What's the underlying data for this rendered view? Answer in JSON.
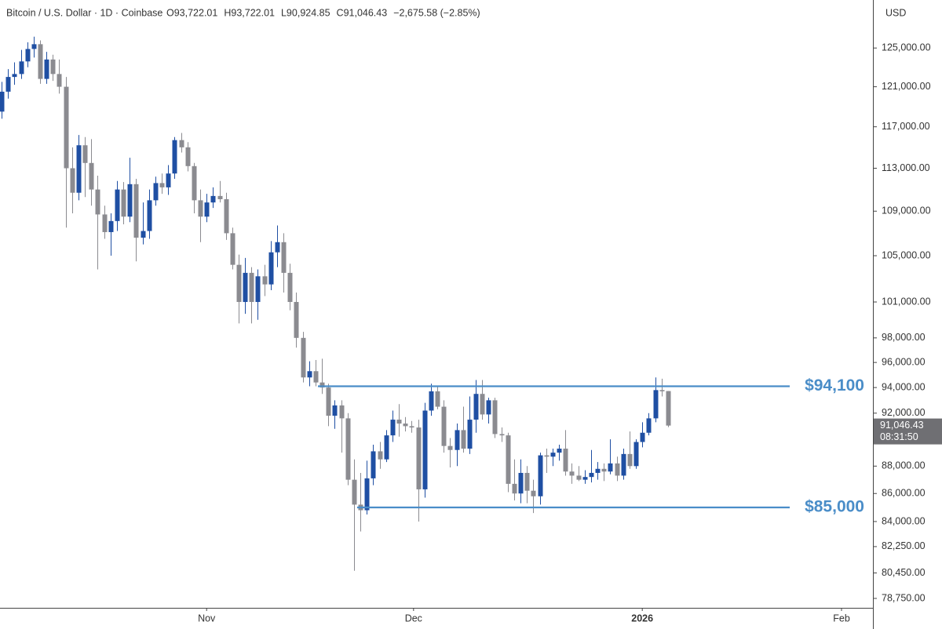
{
  "header": {
    "symbol": "Bitcoin / U.S. Dollar · 1D · Coinbase",
    "ohlc": [
      "O93,722.01",
      "H93,722.01",
      "L90,924.85",
      "C91,046.43"
    ],
    "change": "−2,675.58 (−2.85%)",
    "currency": "USD"
  },
  "chart_data": {
    "type": "candlestick",
    "categories": [
      null,
      null,
      null,
      null,
      null,
      null,
      null,
      null,
      null,
      null,
      null,
      null,
      null,
      null,
      null,
      null,
      null,
      null,
      null,
      null,
      null,
      null,
      null,
      null,
      null,
      null,
      null,
      null,
      null,
      null,
      null,
      null,
      null,
      null,
      null,
      null,
      null,
      null,
      null,
      null,
      null,
      null,
      null,
      null,
      null,
      null,
      null,
      null,
      null,
      null,
      null,
      null,
      null,
      null,
      null,
      null,
      null,
      null,
      null,
      null,
      null,
      null,
      null,
      null,
      null,
      null,
      null,
      null,
      null,
      null,
      null,
      null,
      null,
      null,
      null,
      null,
      null,
      null,
      null,
      null,
      null,
      null,
      null,
      null,
      null,
      null,
      null,
      null,
      null,
      null,
      null,
      null,
      null,
      null,
      null,
      null,
      null,
      null,
      null,
      null,
      null,
      null,
      null,
      null,
      null
    ],
    "open": [
      118500,
      120500,
      122000,
      122300,
      123600,
      124900,
      125400,
      121800,
      123800,
      122300,
      121000,
      113000,
      110700,
      115200,
      113500,
      111000,
      108700,
      107100,
      108100,
      111000,
      108500,
      111500,
      106600,
      107200,
      110000,
      111600,
      111200,
      112500,
      115700,
      115000,
      113200,
      110000,
      108500,
      109800,
      110400,
      110100,
      107000,
      104200,
      101000,
      103500,
      101000,
      103200,
      102500,
      105300,
      106200,
      103500,
      101000,
      98000,
      94800,
      95300,
      94400,
      94000,
      91800,
      92600,
      91600,
      87000,
      85200,
      84800,
      87100,
      89100,
      88500,
      90300,
      91500,
      91200,
      91000,
      90900,
      86300,
      92200,
      93700,
      92500,
      89500,
      89200,
      90700,
      89300,
      91500,
      93500,
      91900,
      93000,
      90400,
      90300,
      86700,
      86000,
      87500,
      86200,
      85800,
      88800,
      88700,
      89000,
      89300,
      87600,
      87300,
      87000,
      87200,
      87500,
      87800,
      87600,
      88200,
      87300,
      88900,
      88000,
      89800,
      90500,
      91600,
      93800,
      93722.01
    ],
    "high": [
      121500,
      122800,
      123500,
      124800,
      125600,
      126200,
      125800,
      124600,
      124300,
      123800,
      122000,
      115000,
      116200,
      116000,
      115800,
      112300,
      109500,
      108800,
      111800,
      111700,
      114000,
      112000,
      109800,
      111000,
      112200,
      112500,
      113300,
      116000,
      116400,
      115500,
      113500,
      111000,
      110600,
      111200,
      111800,
      110700,
      107500,
      105100,
      104800,
      104000,
      103800,
      104200,
      106300,
      107700,
      107000,
      104300,
      101800,
      98500,
      96100,
      96200,
      96300,
      94300,
      93000,
      93000,
      92000,
      88500,
      87500,
      88400,
      89600,
      89800,
      90700,
      92200,
      92700,
      91700,
      91400,
      91500,
      92800,
      94300,
      94100,
      93000,
      90100,
      91200,
      92500,
      93300,
      94600,
      94600,
      93200,
      93200,
      90900,
      90500,
      88500,
      88500,
      88000,
      87000,
      89000,
      89300,
      89300,
      89600,
      90700,
      88200,
      88000,
      87700,
      89200,
      88300,
      88200,
      90000,
      88700,
      89300,
      90600,
      90000,
      91300,
      92000,
      94800,
      94700,
      93722.01
    ],
    "low": [
      117800,
      119800,
      121200,
      121800,
      123000,
      124000,
      121300,
      121300,
      121600,
      120300,
      107500,
      108800,
      110000,
      110300,
      109500,
      103800,
      106500,
      105000,
      107200,
      107800,
      108000,
      104500,
      106000,
      106500,
      109500,
      110600,
      110500,
      112000,
      114500,
      112700,
      108800,
      106200,
      108000,
      109300,
      109800,
      106400,
      103800,
      99200,
      100000,
      99200,
      99500,
      101500,
      102000,
      104000,
      101800,
      100300,
      97200,
      94400,
      94100,
      94100,
      93500,
      91000,
      90800,
      89000,
      86600,
      80600,
      83300,
      84500,
      86600,
      87800,
      88300,
      89800,
      90200,
      90600,
      90500,
      84000,
      85700,
      91800,
      92300,
      89000,
      87900,
      88000,
      89000,
      88900,
      90500,
      91500,
      91200,
      90100,
      89800,
      86100,
      85500,
      85300,
      85300,
      84600,
      85200,
      87500,
      88000,
      88400,
      87300,
      86700,
      86900,
      86700,
      86800,
      87000,
      86900,
      87400,
      86900,
      87000,
      87800,
      87800,
      89400,
      90300,
      91300,
      93300,
      90924.85
    ],
    "close": [
      120500,
      122000,
      122300,
      123600,
      124900,
      125400,
      121800,
      123800,
      122300,
      121000,
      113000,
      110700,
      115200,
      113500,
      111000,
      108700,
      107100,
      108100,
      111000,
      108500,
      111500,
      106600,
      107200,
      110000,
      111600,
      111200,
      112500,
      115700,
      115000,
      113200,
      110000,
      108500,
      109800,
      110400,
      110100,
      107000,
      104200,
      101000,
      103500,
      101000,
      103200,
      102500,
      105300,
      106200,
      103500,
      101000,
      98000,
      94800,
      95300,
      94400,
      94000,
      91800,
      92600,
      91600,
      87000,
      85200,
      84800,
      87100,
      89100,
      88500,
      90300,
      91500,
      91200,
      91000,
      90900,
      86300,
      92200,
      93700,
      92500,
      89500,
      89200,
      90700,
      89300,
      91500,
      93500,
      91900,
      93000,
      90400,
      90300,
      86700,
      86000,
      87500,
      86200,
      85800,
      88800,
      88700,
      89000,
      89300,
      87600,
      87300,
      87000,
      87200,
      87500,
      87800,
      87600,
      88200,
      87300,
      88900,
      88000,
      89800,
      90500,
      91600,
      93800,
      93700,
      91046.43
    ],
    "up_color": "#1f4fa3",
    "down_color": "#8b8b90",
    "log_scale": true,
    "ylim": [
      78130,
      130140
    ],
    "yticks": [
      {
        "value": 125000,
        "label": "125,000.00"
      },
      {
        "value": 121000,
        "label": "121,000.00"
      },
      {
        "value": 117000,
        "label": "117,000.00"
      },
      {
        "value": 113000,
        "label": "113,000.00"
      },
      {
        "value": 109000,
        "label": "109,000.00"
      },
      {
        "value": 105000,
        "label": "105,000.00"
      },
      {
        "value": 101000,
        "label": "101,000.00"
      },
      {
        "value": 98000,
        "label": "98,000.00"
      },
      {
        "value": 96000,
        "label": "96,000.00"
      },
      {
        "value": 94000,
        "label": "94,000.00"
      },
      {
        "value": 92000,
        "label": "92,000.00"
      },
      {
        "value": 88000,
        "label": "88,000.00"
      },
      {
        "value": 86000,
        "label": "86,000.00"
      },
      {
        "value": 84000,
        "label": "84,000.00"
      },
      {
        "value": 82250,
        "label": "82,250.00"
      },
      {
        "value": 80450,
        "label": "80,450.00"
      },
      {
        "value": 78750,
        "label": "78,750.00"
      }
    ],
    "xlim": [
      -0.25,
      136
    ],
    "xticks": [
      {
        "value": 32,
        "label": "Nov"
      },
      {
        "value": 64.3,
        "label": "Dec"
      },
      {
        "value": 100,
        "label": "2026"
      },
      {
        "value": 131.1,
        "label": "Feb"
      }
    ],
    "hlines": [
      {
        "value": 94100,
        "label": "$94,100"
      },
      {
        "value": 85000,
        "label": "$85,000"
      }
    ],
    "hline_color": "#4a8dc8",
    "last_price": {
      "value": 91046.43,
      "label": "91,046.43",
      "countdown": "08:31:50"
    }
  }
}
